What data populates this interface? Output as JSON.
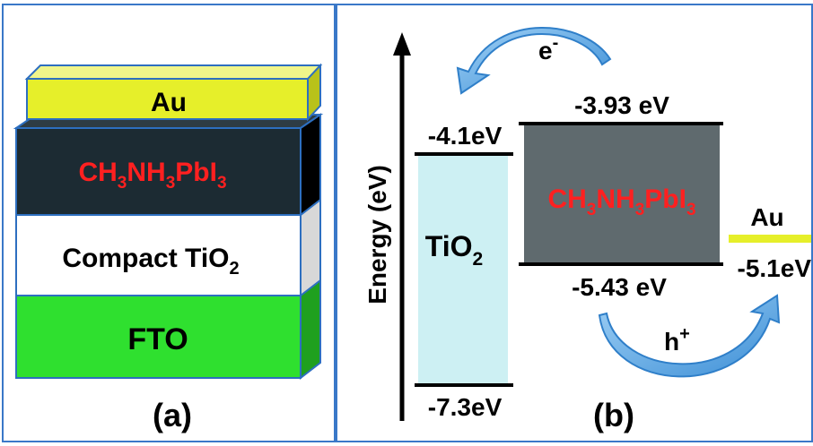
{
  "panel_a": {
    "label": "(a)",
    "layers": {
      "au": "Au",
      "perovskite": {
        "base": "CH",
        "s1": "3",
        "mid": "NH",
        "s2": "3",
        "tail": "PbI",
        "s3": "3"
      },
      "compact_tio2": {
        "base": "Compact TiO",
        "sub": "2"
      },
      "fto": "FTO"
    },
    "colors": {
      "au": "#e6ef2a",
      "perovskite": "#1c2b33",
      "compact_tio2": "#ffffff",
      "fto": "#2fe02f",
      "perovskite_text": "#ff2020"
    }
  },
  "panel_b": {
    "label": "(b)",
    "axis_label": "Energy (eV)",
    "tio2": {
      "label_base": "TiO",
      "label_sub": "2",
      "top": "-4.1eV",
      "bottom": "-7.3eV",
      "color": "#cdf0f3"
    },
    "perovskite": {
      "label": {
        "base": "CH",
        "s1": "3",
        "mid": "NH",
        "s2": "3",
        "tail": "PbI",
        "s3": "3"
      },
      "top": "-3.93 eV",
      "bottom": "-5.43 eV",
      "color": "#5f6a6e"
    },
    "au": {
      "label": "Au",
      "level": "-5.1eV",
      "color": "#e6ef2a"
    },
    "carriers": {
      "electron": "e",
      "electron_sup": "-",
      "hole": "h",
      "hole_sup": "+"
    },
    "arrow_color": "#6ab2ea"
  }
}
